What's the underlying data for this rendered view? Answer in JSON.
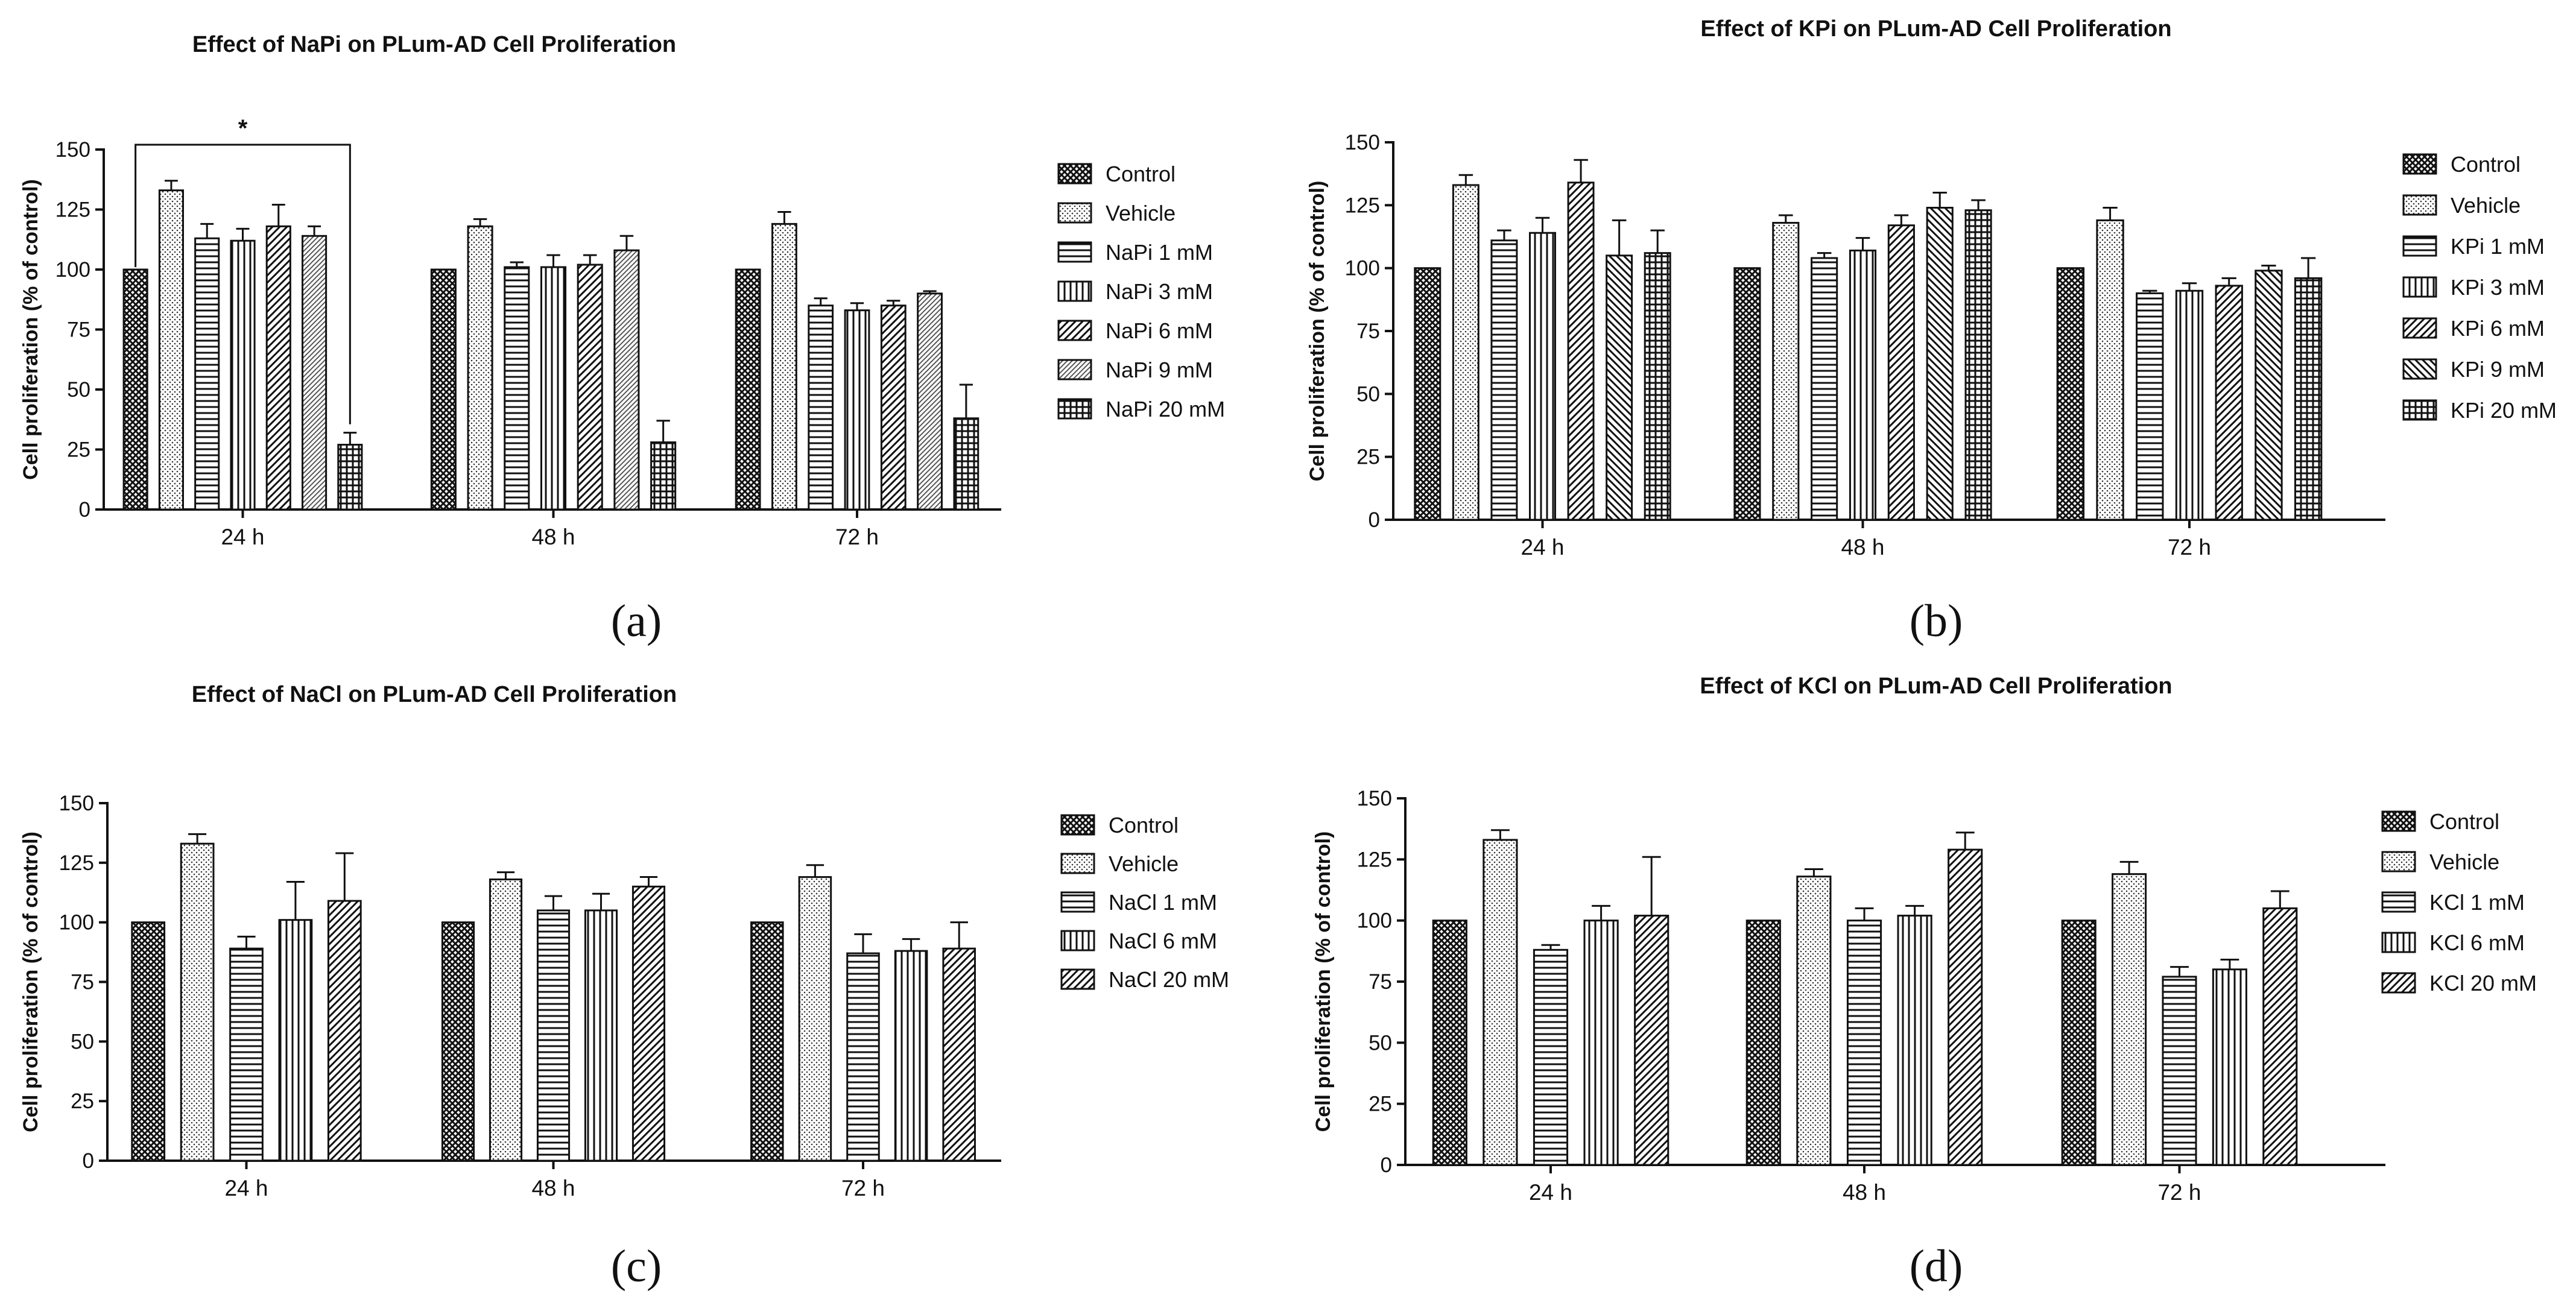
{
  "colors": {
    "ink": "#111111",
    "background": "#ffffff"
  },
  "chart_data": [
    {
      "type": "bar",
      "panel_label": "(a)",
      "title": "Effect of NaPi on PLum-AD Cell Proliferation",
      "xlabel": "",
      "ylabel": "Cell proliferation (% of control)",
      "ylim": [
        0,
        150
      ],
      "yticks": [
        "0",
        "25",
        "50",
        "75",
        "100",
        "125",
        "150"
      ],
      "categories": [
        "24 h",
        "48 h",
        "72 h"
      ],
      "legend_position": "right",
      "significance": {
        "label": "*",
        "from_category": "24 h",
        "from_series": "Control",
        "to_series": "NaPi 20 mM"
      },
      "series": [
        {
          "name": "Control",
          "pattern": "crosshatch",
          "values": [
            100,
            100,
            100
          ],
          "errors": [
            0,
            0,
            0
          ]
        },
        {
          "name": "Vehicle",
          "pattern": "dots",
          "values": [
            133,
            118,
            119
          ],
          "errors": [
            4,
            3,
            5
          ]
        },
        {
          "name": "NaPi 1 mM",
          "pattern": "horizontal",
          "values": [
            113,
            101,
            85
          ],
          "errors": [
            6,
            2,
            3
          ]
        },
        {
          "name": "NaPi 3 mM",
          "pattern": "vertical",
          "values": [
            112,
            101,
            83
          ],
          "errors": [
            5,
            5,
            3
          ]
        },
        {
          "name": "NaPi 6 mM",
          "pattern": "diag-right",
          "values": [
            118,
            102,
            85
          ],
          "errors": [
            9,
            4,
            2
          ]
        },
        {
          "name": "NaPi 9 mM",
          "pattern": "diag-right-dense",
          "values": [
            114,
            108,
            90
          ],
          "errors": [
            4,
            6,
            1
          ]
        },
        {
          "name": "NaPi 20 mM",
          "pattern": "grid",
          "values": [
            27,
            28,
            38
          ],
          "errors": [
            5,
            9,
            14
          ]
        }
      ]
    },
    {
      "type": "bar",
      "panel_label": "(b)",
      "title": "Effect of KPi on PLum-AD Cell Proliferation",
      "xlabel": "",
      "ylabel": "Cell proliferation (% of control)",
      "ylim": [
        0,
        150
      ],
      "yticks": [
        "0",
        "25",
        "50",
        "75",
        "100",
        "125",
        "150"
      ],
      "categories": [
        "24 h",
        "48 h",
        "72 h"
      ],
      "legend_position": "right",
      "series": [
        {
          "name": "Control",
          "pattern": "crosshatch",
          "values": [
            100,
            100,
            100
          ],
          "errors": [
            0,
            0,
            0
          ]
        },
        {
          "name": "Vehicle",
          "pattern": "dots",
          "values": [
            133,
            118,
            119
          ],
          "errors": [
            4,
            3,
            5
          ]
        },
        {
          "name": "KPi 1 mM",
          "pattern": "horizontal",
          "values": [
            111,
            104,
            90
          ],
          "errors": [
            4,
            2,
            1
          ]
        },
        {
          "name": "KPi 3 mM",
          "pattern": "vertical",
          "values": [
            114,
            107,
            91
          ],
          "errors": [
            6,
            5,
            3
          ]
        },
        {
          "name": "KPi 6 mM",
          "pattern": "diag-right",
          "values": [
            134,
            117,
            93
          ],
          "errors": [
            9,
            4,
            3
          ]
        },
        {
          "name": "KPi 9 mM",
          "pattern": "diag-left",
          "values": [
            105,
            124,
            99
          ],
          "errors": [
            14,
            6,
            2
          ]
        },
        {
          "name": "KPi 20 mM",
          "pattern": "grid",
          "values": [
            106,
            123,
            96
          ],
          "errors": [
            9,
            4,
            8
          ]
        }
      ]
    },
    {
      "type": "bar",
      "panel_label": "(c)",
      "title": "Effect of NaCl on PLum-AD Cell Proliferation",
      "xlabel": "",
      "ylabel": "Cell proliferation (% of control)",
      "ylim": [
        0,
        150
      ],
      "yticks": [
        "0",
        "25",
        "50",
        "75",
        "100",
        "125",
        "150"
      ],
      "categories": [
        "24 h",
        "48 h",
        "72 h"
      ],
      "legend_position": "right",
      "series": [
        {
          "name": "Control",
          "pattern": "crosshatch",
          "values": [
            100,
            100,
            100
          ],
          "errors": [
            0,
            0,
            0
          ]
        },
        {
          "name": "Vehicle",
          "pattern": "dots",
          "values": [
            133,
            118,
            119
          ],
          "errors": [
            4,
            3,
            5
          ]
        },
        {
          "name": "NaCl 1 mM",
          "pattern": "horizontal",
          "values": [
            89,
            105,
            87
          ],
          "errors": [
            5,
            6,
            8
          ]
        },
        {
          "name": "NaCl 6 mM",
          "pattern": "vertical",
          "values": [
            101,
            105,
            88
          ],
          "errors": [
            16,
            7,
            5
          ]
        },
        {
          "name": "NaCl 20 mM",
          "pattern": "diag-right",
          "values": [
            109,
            115,
            89
          ],
          "errors": [
            20,
            4,
            11
          ]
        }
      ]
    },
    {
      "type": "bar",
      "panel_label": "(d)",
      "title": "Effect of KCl on PLum-AD Cell Proliferation",
      "xlabel": "",
      "ylabel": "Cell proliferation (% of control)",
      "ylim": [
        0,
        150
      ],
      "yticks": [
        "0",
        "25",
        "50",
        "75",
        "100",
        "125",
        "150"
      ],
      "categories": [
        "24 h",
        "48 h",
        "72 h"
      ],
      "legend_position": "right",
      "series": [
        {
          "name": "Control",
          "pattern": "crosshatch",
          "values": [
            100,
            100,
            100
          ],
          "errors": [
            0,
            0,
            0
          ]
        },
        {
          "name": "Vehicle",
          "pattern": "dots",
          "values": [
            133,
            118,
            119
          ],
          "errors": [
            4,
            3,
            5
          ]
        },
        {
          "name": "KCl 1 mM",
          "pattern": "horizontal",
          "values": [
            88,
            100,
            77
          ],
          "errors": [
            2,
            5,
            4
          ]
        },
        {
          "name": "KCl 6 mM",
          "pattern": "vertical",
          "values": [
            100,
            102,
            80
          ],
          "errors": [
            6,
            4,
            4
          ]
        },
        {
          "name": "KCl 20 mM",
          "pattern": "diag-right",
          "values": [
            102,
            129,
            105
          ],
          "errors": [
            24,
            7,
            7
          ]
        }
      ]
    }
  ]
}
